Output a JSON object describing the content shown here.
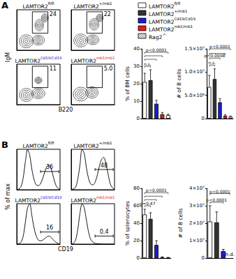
{
  "chart_data": [
    {
      "type": "legend",
      "entries": [
        {
          "label": "LAMTOR2",
          "sup": "fl/fl",
          "color": "#ffffff"
        },
        {
          "label": "LAMTOR2",
          "sup": "+/mb1",
          "color": "#333333"
        },
        {
          "label": "LAMTOR2",
          "sup": "Cd19/Cd19",
          "color": "#1c1cd0"
        },
        {
          "label": "LAMTOR2",
          "sup": "mb1/mb1",
          "color": "#e41a1c"
        },
        {
          "label": "Rag2",
          "sup": "-/-",
          "color": "#ffffff"
        }
      ]
    },
    {
      "type": "contour",
      "panel": "A",
      "xlabel": "B220",
      "ylabel": "IgM",
      "xlim": [
        0,
        100
      ],
      "ylim": [
        0,
        100
      ],
      "tick_labels": false,
      "plots": [
        {
          "title": "LAMTOR2",
          "sup": "fl/fl",
          "color": "#000000",
          "populations": [
            {
              "x": 22,
              "y": 22,
              "rx": 16,
              "ry": 16
            },
            {
              "x": 50,
              "y": 25,
              "rx": 14,
              "ry": 12
            },
            {
              "x": 52,
              "y": 62,
              "rx": 10,
              "ry": 14
            },
            {
              "x": 65,
              "y": 80,
              "rx": 8,
              "ry": 10
            }
          ],
          "gate": {
            "x0": 36,
            "y0": 42,
            "x1": 72,
            "y1": 95,
            "label": "24"
          }
        },
        {
          "title": "LAMTOR2",
          "sup": "+/mb1",
          "color": "#000000",
          "populations": [
            {
              "x": 22,
              "y": 24,
              "rx": 16,
              "ry": 16
            },
            {
              "x": 50,
              "y": 26,
              "rx": 14,
              "ry": 12
            },
            {
              "x": 53,
              "y": 64,
              "rx": 11,
              "ry": 14
            },
            {
              "x": 66,
              "y": 80,
              "rx": 8,
              "ry": 9
            }
          ],
          "gate": {
            "x0": 36,
            "y0": 42,
            "x1": 72,
            "y1": 95,
            "label": "22"
          }
        },
        {
          "title": "LAMTOR2",
          "sup": "Cd19/Cd19",
          "color": "#1c1cd0",
          "populations": [
            {
              "x": 22,
              "y": 24,
              "rx": 16,
              "ry": 16
            },
            {
              "x": 50,
              "y": 28,
              "rx": 15,
              "ry": 13
            },
            {
              "x": 50,
              "y": 60,
              "rx": 8,
              "ry": 8
            }
          ],
          "gate": {
            "x0": 36,
            "y0": 42,
            "x1": 72,
            "y1": 95,
            "label": "11"
          }
        },
        {
          "title": "LAMTOR2",
          "sup": "mb1/mb1",
          "color": "#e41a1c",
          "populations": [
            {
              "x": 22,
              "y": 26,
              "rx": 17,
              "ry": 17
            },
            {
              "x": 48,
              "y": 30,
              "rx": 14,
              "ry": 14
            }
          ],
          "gate": {
            "x0": 36,
            "y0": 42,
            "x1": 72,
            "y1": 95,
            "label": "5.0"
          }
        }
      ]
    },
    {
      "type": "bar",
      "ylabel": "% of BM cells",
      "categories": [
        null,
        null,
        null,
        null,
        null
      ],
      "values": [
        21,
        22,
        8.5,
        2.5,
        2
      ],
      "errors": [
        5,
        6,
        2,
        1,
        0.5
      ],
      "colors": [
        "#ffffff",
        "#333333",
        "#1c1cd0",
        "#e41a1c",
        "#ffffff"
      ],
      "ylim": [
        0,
        40
      ],
      "yticks": [
        0,
        10,
        20,
        30,
        40
      ],
      "grid": false,
      "tick_labels": "y",
      "brackets": [
        {
          "from": 0,
          "to": 1,
          "y": 30,
          "label": "n.s."
        },
        {
          "from": 0,
          "to": 2,
          "y": 34
        },
        {
          "from": 0,
          "to": 3,
          "y": 36
        },
        {
          "from": 0,
          "to": 4,
          "y": 38,
          "label": "p<0.0001"
        }
      ]
    },
    {
      "type": "bar",
      "ylabel": "# of B cells",
      "categories": [
        null,
        null,
        null,
        null,
        null
      ],
      "values": [
        6800000,
        8500000,
        3500000,
        600000,
        400000
      ],
      "errors": [
        2500000,
        2200000,
        800000,
        200000,
        150000
      ],
      "colors": [
        "#ffffff",
        "#333333",
        "#1c1cd0",
        "#e41a1c",
        "#ffffff"
      ],
      "ylim": [
        0,
        15000000
      ],
      "yticks": [
        0,
        {
          "value": 5000000,
          "label": "5.0×10⁶"
        },
        {
          "value": 10000000,
          "label": "1.0×10⁷"
        },
        {
          "value": 15000000,
          "label": "1.5×10⁷"
        }
      ],
      "grid": false,
      "tick_labels": "y",
      "brackets": [
        {
          "from": 0,
          "to": 1,
          "y": 11500000,
          "label": "n.s."
        },
        {
          "from": 0,
          "to": 2,
          "y": 13000000,
          "label": "p<0.0008"
        },
        {
          "from": 0,
          "to": 3,
          "y": 14000000
        },
        {
          "from": 0,
          "to": 4,
          "y": 15000000,
          "label": "p<0.0001"
        }
      ]
    },
    {
      "type": "line",
      "panel": "B",
      "xlabel": "CD19",
      "ylabel": "% of max",
      "xlim": [
        0,
        100
      ],
      "ylim": [
        0,
        100
      ],
      "tick_labels": false,
      "x": [
        0,
        5,
        10,
        15,
        20,
        25,
        30,
        35,
        40,
        45,
        50,
        55,
        60,
        65,
        70,
        75,
        80,
        85,
        90,
        95,
        100
      ],
      "plots": [
        {
          "title": "LAMTOR2",
          "sup": "fl/fl",
          "color": "#000000",
          "values": [
            0,
            2,
            8,
            30,
            70,
            100,
            85,
            50,
            25,
            12,
            10,
            15,
            28,
            45,
            58,
            60,
            50,
            30,
            12,
            4,
            1
          ],
          "gate": {
            "x0": 55,
            "x1": 97,
            "y": 45,
            "label": "36"
          }
        },
        {
          "title": "LAMTOR2",
          "sup": "+/mb1",
          "color": "#000000",
          "values": [
            0,
            2,
            6,
            25,
            60,
            100,
            90,
            55,
            28,
            14,
            12,
            18,
            35,
            58,
            75,
            80,
            65,
            40,
            15,
            5,
            1
          ],
          "gate": {
            "x0": 55,
            "x1": 97,
            "y": 50,
            "label": "48"
          }
        },
        {
          "title": "LAMTOR2",
          "sup": "Cd19/Cd19",
          "color": "#1c1cd0",
          "values": [
            0,
            1,
            5,
            20,
            55,
            90,
            100,
            70,
            40,
            20,
            10,
            8,
            10,
            14,
            18,
            20,
            16,
            10,
            5,
            2,
            0
          ],
          "gate": {
            "x0": 55,
            "x1": 97,
            "y": 30,
            "label": "16"
          }
        },
        {
          "title": "LAMTOR2",
          "sup": "mb1/mb1",
          "color": "#e41a1c",
          "values": [
            0,
            2,
            10,
            35,
            75,
            100,
            90,
            60,
            30,
            12,
            5,
            2,
            1,
            1,
            0,
            0,
            0,
            0,
            0,
            0,
            0
          ],
          "gate": {
            "x0": 55,
            "x1": 97,
            "y": 20,
            "label": "0.4"
          }
        }
      ]
    },
    {
      "type": "bar",
      "ylabel": "% of splenocytes",
      "categories": [
        null,
        null,
        null,
        null,
        null
      ],
      "values": [
        50,
        45,
        15,
        1,
        0.5
      ],
      "errors": [
        6,
        7,
        5,
        0.5,
        0.3
      ],
      "colors": [
        "#ffffff",
        "#333333",
        "#1c1cd0",
        "#e41a1c",
        "#ffffff"
      ],
      "ylim": [
        0,
        80
      ],
      "yticks": [
        0,
        20,
        40,
        60,
        80
      ],
      "grid": false,
      "tick_labels": "y",
      "brackets": [
        {
          "from": 0,
          "to": 1,
          "y": 60,
          "label": "p=0.47"
        },
        {
          "from": 0,
          "to": 2,
          "y": 67
        },
        {
          "from": 0,
          "to": 3,
          "y": 71
        },
        {
          "from": 0,
          "to": 4,
          "y": 75,
          "label": "p<0.0001"
        }
      ]
    },
    {
      "type": "bar",
      "ylabel": "# of B cells",
      "categories": [
        null,
        null,
        null,
        null
      ],
      "values": [
        21000000,
        20500000,
        4000000,
        null
      ],
      "errors": [
        9000000,
        6000000,
        1000000,
        null
      ],
      "colors": [
        "#ffffff",
        "#333333",
        "#1c1cd0",
        "#e41a1c"
      ],
      "ylim": [
        0,
        40000000
      ],
      "yticks": [
        0,
        {
          "value": 10000000,
          "label": "1×10⁷"
        },
        {
          "value": 20000000,
          "label": "2×10⁷"
        },
        {
          "value": 30000000,
          "label": "3×10⁷"
        },
        {
          "value": 40000000,
          "label": "4×10⁷"
        }
      ],
      "grid": false,
      "tick_labels": "y",
      "brackets": [
        {
          "from": 0,
          "to": 2,
          "y": 32000000,
          "label": "p<0.0001"
        },
        {
          "from": 0,
          "to": 3,
          "y": 37000000,
          "label": "p<0.0001"
        }
      ],
      "annotations": [
        {
          "category": 3,
          "text": "n.d."
        }
      ]
    }
  ]
}
